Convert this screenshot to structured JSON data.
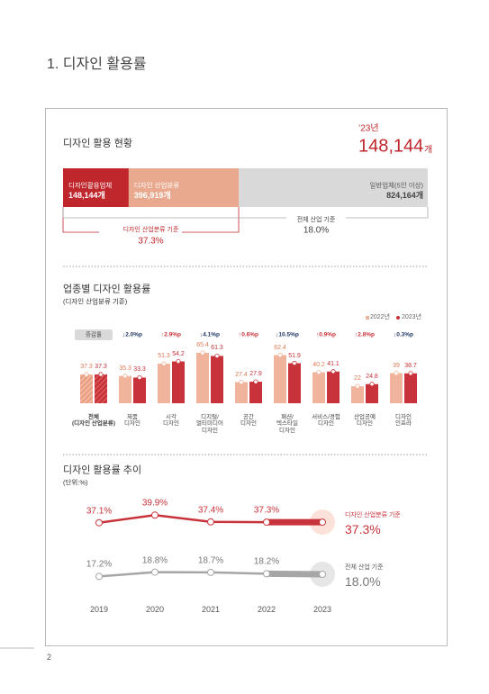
{
  "header": {
    "title": "1. 디자인 활용률"
  },
  "status": {
    "title": "디자인 활용 현황",
    "year": "’23년",
    "total": {
      "value": "148,144",
      "unit": "개"
    },
    "segments": [
      {
        "name": "디자인활용업체",
        "label": "148,144개",
        "value": 148144,
        "color": "#c0272d"
      },
      {
        "name": "디자인 산업분류",
        "label": "396,919개",
        "value": 396919,
        "color": "#e8a98f"
      },
      {
        "name": "일반업체(5인 이상)",
        "label": "824,164개",
        "value": 824164,
        "color": "#d9d9d9"
      }
    ],
    "bases": [
      {
        "name": "디자인 산업분류 기준",
        "value": "37.3%"
      },
      {
        "name": "전체 산업 기준",
        "value": "18.0%"
      }
    ]
  },
  "by_industry": {
    "type": "bar",
    "title": "업종별 디자인 활용률",
    "subtitle": "(디자인 산업분류 기준)",
    "change_title": "증감률",
    "changes": [
      "↓2.0%p",
      "↑2.9%p",
      "↓4.1%p",
      "↑0.6%p",
      "↓10.5%p",
      "↑0.9%p",
      "↑2.8%p",
      "↓0.3%p"
    ],
    "categories": [
      "전체\n(디자인 산업분류)",
      "제품\n디자인",
      "시각\n디자인",
      "디지털/\n멀티미디어\n디자인",
      "공간\n디자인",
      "패션/\n텍스타일\n디자인",
      "서비스/경험\n디자인",
      "산업공예\n디자인",
      "디자인\n인프라"
    ],
    "series": [
      {
        "name": "2022년",
        "color": "#f0b49c",
        "values": [
          37.3,
          35.3,
          51.3,
          65.4,
          27.4,
          62.4,
          40.2,
          22.0,
          39.0
        ]
      },
      {
        "name": "2023년",
        "color": "#c8323a",
        "values": [
          37.3,
          33.3,
          54.2,
          61.3,
          27.9,
          51.9,
          41.1,
          24.8,
          38.7
        ]
      }
    ],
    "ylim": [
      0,
      70
    ]
  },
  "trend": {
    "type": "line",
    "title": "디자인 활용률 추이",
    "subtitle": "(단위:%)",
    "categories": [
      "2019",
      "2020",
      "2021",
      "2022",
      "2023"
    ],
    "series": [
      {
        "name": "디자인 산업분류 기준",
        "color": "#c8323a",
        "values": [
          37.1,
          39.9,
          37.4,
          37.3,
          37.3
        ],
        "value_labels": [
          "37.1%",
          "39.9%",
          "37.4%",
          "37.3%",
          "37.3%"
        ]
      },
      {
        "name": "전체 산업 기준",
        "color": "#a6a6a6",
        "values": [
          17.2,
          18.8,
          18.7,
          18.2,
          18.0
        ],
        "value_labels": [
          "17.2%",
          "18.8%",
          "18.7%",
          "18.2%",
          "18.0%"
        ]
      }
    ],
    "ylim": [
      14,
      42
    ]
  },
  "page_number": "2"
}
